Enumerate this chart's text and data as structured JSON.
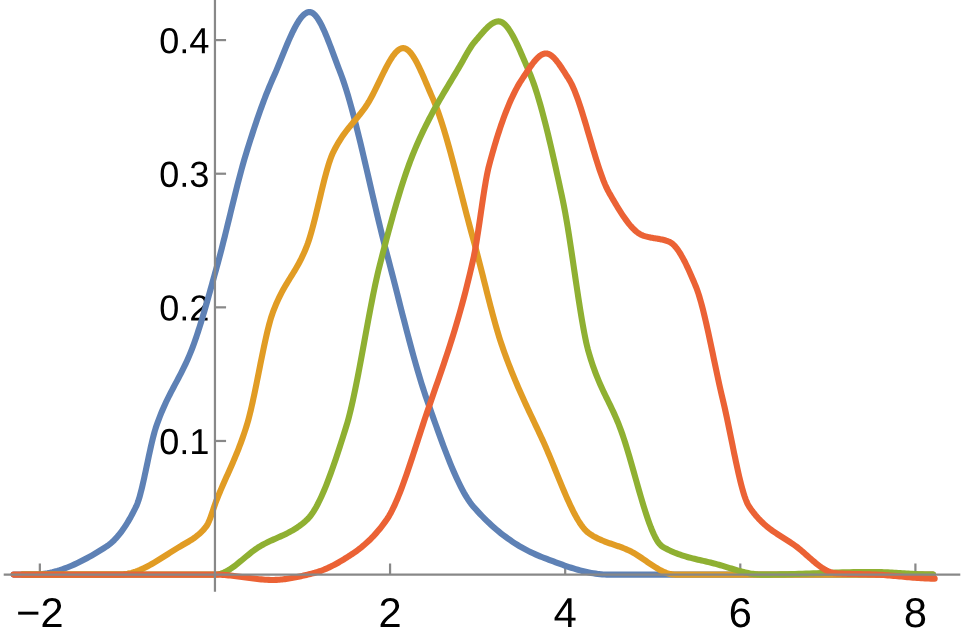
{
  "chart_data": {
    "type": "line",
    "xlim": [
      -2.4,
      8.5
    ],
    "ylim": [
      -0.012,
      0.43
    ],
    "xticks": [
      -2,
      2,
      4,
      6,
      8
    ],
    "yticks": [
      0.1,
      0.2,
      0.3,
      0.4
    ],
    "grid": false,
    "marker": "none",
    "line_style": "solid",
    "series": [
      {
        "color": "#5e81b5",
        "x": [
          -2.3,
          -2.08,
          -1.24,
          -0.9,
          -0.67,
          -0.25,
          0.02,
          0.36,
          0.66,
          1.08,
          1.43,
          1.96,
          2.42,
          2.95,
          3.74,
          4.5,
          8.2
        ],
        "values": [
          0,
          0,
          0.021,
          0.051,
          0.111,
          0.171,
          0.23,
          0.316,
          0.371,
          0.421,
          0.376,
          0.241,
          0.131,
          0.051,
          0.013,
          0,
          0
        ]
      },
      {
        "color": "#e19c24",
        "x": [
          -2.2,
          -1.09,
          -0.4,
          -0.1,
          0.02,
          0.36,
          0.66,
          1.05,
          1.35,
          1.73,
          2.15,
          2.49,
          2.95,
          3.28,
          3.74,
          4.27,
          4.73,
          5.26,
          8.2
        ],
        "values": [
          0,
          0,
          0.021,
          0.036,
          0.056,
          0.111,
          0.196,
          0.246,
          0.316,
          0.351,
          0.394,
          0.356,
          0.251,
          0.171,
          0.101,
          0.031,
          0.018,
          0,
          0
        ]
      },
      {
        "color": "#8fb032",
        "x": [
          -2.2,
          0.0,
          0.51,
          1.05,
          1.5,
          1.88,
          2.27,
          2.8,
          2.97,
          3.24,
          3.59,
          3.97,
          4.27,
          4.62,
          5.11,
          5.72,
          6.25,
          7.5,
          8.2
        ],
        "values": [
          0,
          0,
          0.021,
          0.041,
          0.111,
          0.231,
          0.316,
          0.381,
          0.399,
          0.414,
          0.376,
          0.281,
          0.166,
          0.111,
          0.021,
          0.008,
          0,
          0.002,
          0
        ]
      },
      {
        "color": "#eb6235",
        "x": [
          -2.3,
          0.0,
          0.66,
          1.12,
          1.58,
          1.96,
          2.42,
          2.95,
          3.13,
          3.51,
          3.78,
          4.04,
          4.5,
          4.88,
          5.19,
          5.49,
          5.8,
          6.1,
          6.64,
          7.09,
          7.55,
          8.22
        ],
        "values": [
          0,
          0,
          -0.004,
          0.001,
          0.016,
          0.041,
          0.121,
          0.236,
          0.306,
          0.371,
          0.39,
          0.371,
          0.286,
          0.254,
          0.249,
          0.216,
          0.131,
          0.051,
          0.021,
          0.001,
          0,
          -0.003
        ]
      }
    ]
  }
}
